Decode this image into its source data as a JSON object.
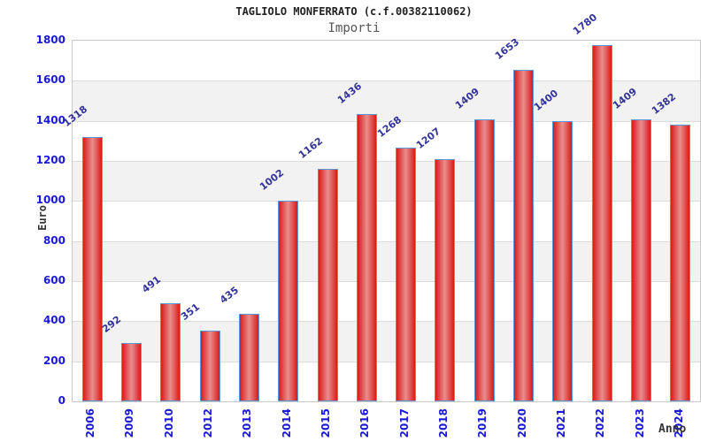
{
  "header": {
    "title": "TAGLIOLO MONFERRATO (c.f.00382110062)",
    "subtitle": "Importi"
  },
  "chart_data": {
    "type": "bar",
    "title": "TAGLIOLO MONFERRATO (c.f.00382110062)",
    "subtitle": "Importi",
    "xlabel": "Anno",
    "ylabel": "Euro",
    "categories": [
      "2006",
      "2009",
      "2010",
      "2012",
      "2013",
      "2014",
      "2015",
      "2016",
      "2017",
      "2018",
      "2019",
      "2020",
      "2021",
      "2022",
      "2023",
      "2024"
    ],
    "values": [
      1318,
      292,
      491,
      351,
      435,
      1002,
      1162,
      1436,
      1268,
      1207,
      1409,
      1653,
      1400,
      1780,
      1409,
      1382
    ],
    "ylim": [
      0,
      1800
    ],
    "ytick_step": 200,
    "yticks": [
      0,
      200,
      400,
      600,
      800,
      1000,
      1200,
      1400,
      1600,
      1800
    ],
    "grid": "horizontal-bands",
    "legend_position": "none",
    "colors": {
      "bar_edge": "#d81b1b",
      "bar_center": "#ea8e8e",
      "bar_border": "#5b9bd5",
      "tick_label": "#1a1ad6",
      "value_label": "#333399",
      "band_gray": "#f2f2f2",
      "band_white": "#ffffff",
      "grid_line": "#dcdcdc",
      "plot_border": "#c9c9c9",
      "axis_label": "#333333"
    }
  }
}
